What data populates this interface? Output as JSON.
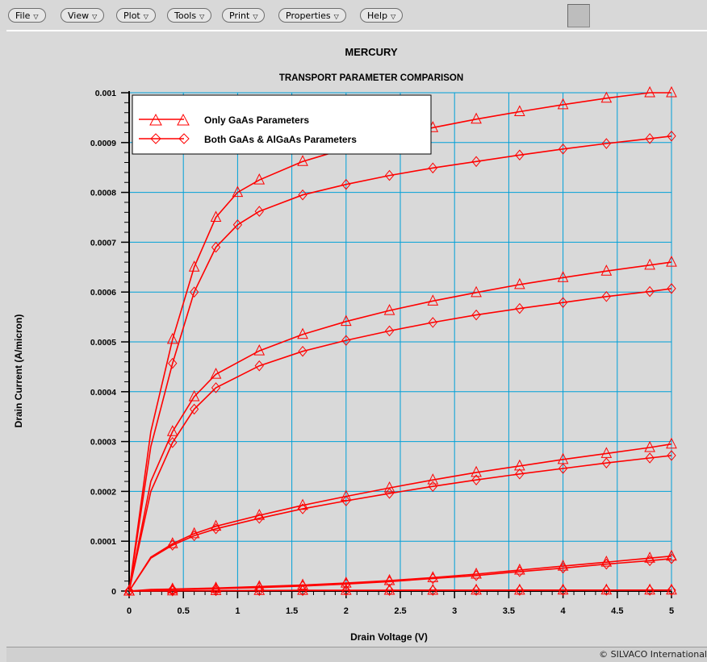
{
  "menu": [
    {
      "label": "File",
      "icon": "triangle-down"
    },
    {
      "label": "View",
      "icon": "triangle-down"
    },
    {
      "label": "Plot",
      "icon": "triangle-down"
    },
    {
      "label": "Tools",
      "icon": "triangle-down"
    },
    {
      "label": "Print",
      "icon": "triangle-down"
    },
    {
      "label": "Properties",
      "icon": "triangle-down"
    },
    {
      "label": "Help",
      "icon": "triangle-down"
    }
  ],
  "footer": {
    "copyright": "© SILVACO International"
  },
  "colors": {
    "curve": "#ff0000",
    "grid": "#00a0d8",
    "background": "#d9d9d9"
  },
  "chart_data": {
    "type": "line",
    "title": "MERCURY",
    "subtitle": "TRANSPORT PARAMETER COMPARISON",
    "xlabel": "Drain Voltage (V)",
    "ylabel": "Drain Current (A/micron)",
    "xlim": [
      0,
      5
    ],
    "ylim": [
      0,
      0.001
    ],
    "xticks": [
      "0",
      "0.5",
      "1",
      "1.5",
      "2",
      "2.5",
      "3",
      "3.5",
      "4",
      "4.5",
      "5"
    ],
    "yticks": [
      "0",
      "0.0001",
      "0.0002",
      "0.0003",
      "0.0004",
      "0.0005",
      "0.0006",
      "0.0007",
      "0.0008",
      "0.0009",
      "0.001"
    ],
    "grid": true,
    "legend_position": "top-left",
    "legend": [
      {
        "label": "Only GaAs Parameters",
        "marker": "triangle"
      },
      {
        "label": "Both GaAs & AlGaAs Parameters",
        "marker": "diamond"
      }
    ],
    "series": [
      {
        "group": "Only GaAs Parameters",
        "marker": "triangle",
        "x": [
          0,
          0.2,
          0.4,
          0.6,
          0.8,
          1.0,
          1.2,
          1.6,
          2.0,
          2.4,
          2.8,
          3.2,
          3.6,
          4.0,
          4.4,
          4.8,
          5.0
        ],
        "y": [
          0,
          0.00032,
          0.000505,
          0.00065,
          0.00075,
          0.0008,
          0.000825,
          0.000862,
          0.000888,
          0.00091,
          0.00093,
          0.000947,
          0.000962,
          0.000976,
          0.000989,
          0.001,
          0.001
        ]
      },
      {
        "group": "Both GaAs & AlGaAs Parameters",
        "marker": "diamond",
        "x": [
          0,
          0.2,
          0.4,
          0.6,
          0.8,
          1.0,
          1.2,
          1.6,
          2.0,
          2.4,
          2.8,
          3.2,
          3.6,
          4.0,
          4.4,
          4.8,
          5.0
        ],
        "y": [
          0,
          0.00029,
          0.000457,
          0.0006,
          0.00069,
          0.000735,
          0.000762,
          0.000795,
          0.000816,
          0.000834,
          0.000849,
          0.000862,
          0.000875,
          0.000887,
          0.000898,
          0.000908,
          0.000913
        ]
      },
      {
        "group": "Only GaAs Parameters",
        "marker": "triangle",
        "x": [
          0,
          0.2,
          0.4,
          0.6,
          0.8,
          1.2,
          1.6,
          2.0,
          2.4,
          2.8,
          3.2,
          3.6,
          4.0,
          4.4,
          4.8,
          5.0
        ],
        "y": [
          0,
          0.00022,
          0.00032,
          0.00039,
          0.000435,
          0.000482,
          0.000515,
          0.000541,
          0.000563,
          0.000582,
          0.000599,
          0.000615,
          0.000629,
          0.000642,
          0.000654,
          0.00066
        ]
      },
      {
        "group": "Both GaAs & AlGaAs Parameters",
        "marker": "diamond",
        "x": [
          0,
          0.2,
          0.4,
          0.6,
          0.8,
          1.2,
          1.6,
          2.0,
          2.4,
          2.8,
          3.2,
          3.6,
          4.0,
          4.4,
          4.8,
          5.0
        ],
        "y": [
          0,
          0.0002,
          0.000298,
          0.000365,
          0.000408,
          0.000452,
          0.000481,
          0.000503,
          0.000522,
          0.000539,
          0.000554,
          0.000567,
          0.000579,
          0.000591,
          0.000601,
          0.000607
        ]
      },
      {
        "group": "Only GaAs Parameters",
        "marker": "triangle",
        "x": [
          0,
          0.2,
          0.4,
          0.6,
          0.8,
          1.2,
          1.6,
          2.0,
          2.4,
          2.8,
          3.2,
          3.6,
          4.0,
          4.4,
          4.8,
          5.0
        ],
        "y": [
          0,
          6.8e-05,
          9.5e-05,
          0.000115,
          0.00013,
          0.000152,
          0.000172,
          0.00019,
          0.000207,
          0.000223,
          0.000238,
          0.000251,
          0.000264,
          0.000276,
          0.000288,
          0.000295
        ]
      },
      {
        "group": "Both GaAs & AlGaAs Parameters",
        "marker": "diamond",
        "x": [
          0,
          0.2,
          0.4,
          0.6,
          0.8,
          1.2,
          1.6,
          2.0,
          2.4,
          2.8,
          3.2,
          3.6,
          4.0,
          4.4,
          4.8,
          5.0
        ],
        "y": [
          0,
          6.6e-05,
          9.2e-05,
          0.000111,
          0.000125,
          0.000146,
          0.000165,
          0.000181,
          0.000196,
          0.00021,
          0.000223,
          0.000235,
          0.000246,
          0.000257,
          0.000267,
          0.000272
        ]
      },
      {
        "group": "Only GaAs Parameters",
        "marker": "triangle",
        "x": [
          0,
          0.2,
          0.4,
          0.8,
          1.2,
          1.6,
          2.0,
          2.4,
          2.8,
          3.2,
          3.6,
          4.0,
          4.4,
          4.8,
          5.0
        ],
        "y": [
          0,
          3e-06,
          4e-06,
          6e-06,
          9e-06,
          1.2e-05,
          1.6e-05,
          2.1e-05,
          2.7e-05,
          3.4e-05,
          4.2e-05,
          5e-05,
          5.8e-05,
          6.6e-05,
          7e-05
        ]
      },
      {
        "group": "Both GaAs & AlGaAs Parameters",
        "marker": "diamond",
        "x": [
          0,
          0.2,
          0.4,
          0.8,
          1.2,
          1.6,
          2.0,
          2.4,
          2.8,
          3.2,
          3.6,
          4.0,
          4.4,
          4.8,
          5.0
        ],
        "y": [
          0,
          2e-06,
          3e-06,
          5e-06,
          7e-06,
          1e-05,
          1.4e-05,
          1.9e-05,
          2.5e-05,
          3.1e-05,
          3.9e-05,
          4.6e-05,
          5.4e-05,
          6.1e-05,
          6.5e-05
        ]
      },
      {
        "group": "Only GaAs Parameters",
        "marker": "triangle",
        "x": [
          0,
          0.4,
          0.8,
          1.2,
          1.6,
          2.0,
          2.4,
          2.8,
          3.2,
          3.6,
          4.0,
          4.4,
          4.8,
          5.0
        ],
        "y": [
          0,
          5e-07,
          1e-06,
          1.2e-06,
          1.4e-06,
          1.5e-06,
          1.6e-06,
          1.7e-06,
          1.8e-06,
          1.9e-06,
          2e-06,
          2e-06,
          2e-06,
          2e-06
        ]
      },
      {
        "group": "Both GaAs & AlGaAs Parameters",
        "marker": "diamond",
        "x": [
          0,
          0.4,
          0.8,
          1.2,
          1.6,
          2.0,
          2.4,
          2.8,
          3.2,
          3.6,
          4.0,
          4.4,
          4.8,
          5.0
        ],
        "y": [
          0,
          4e-07,
          8e-07,
          1e-06,
          1.1e-06,
          1.2e-06,
          1.3e-06,
          1.4e-06,
          1.5e-06,
          1.5e-06,
          1.6e-06,
          1.6e-06,
          1.6e-06,
          1.6e-06
        ]
      }
    ]
  }
}
